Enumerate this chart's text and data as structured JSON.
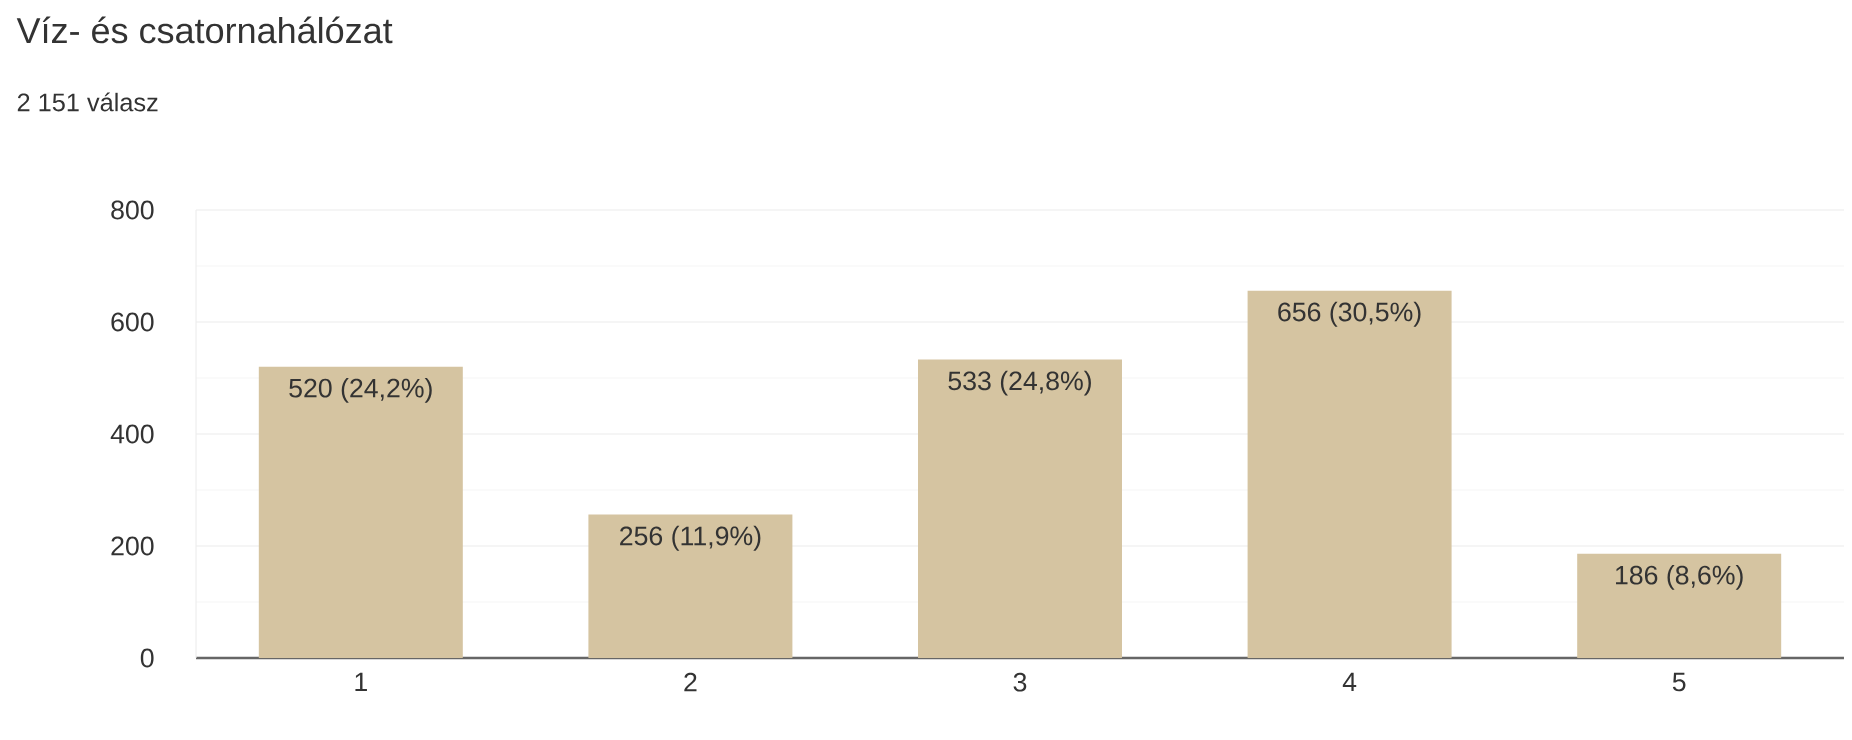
{
  "chart_data": {
    "type": "bar",
    "title": "Víz- és csatornahálózat",
    "subtitle": "2 151 válasz",
    "categories": [
      "1",
      "2",
      "3",
      "4",
      "5"
    ],
    "values": [
      520,
      256,
      533,
      656,
      186
    ],
    "value_labels": [
      "520 (24,2%)",
      "256 (11,9%)",
      "533 (24,8%)",
      "656 (30,5%)",
      "186 (8,6%)"
    ],
    "color": "#d5c4a1",
    "ylim": [
      0,
      800
    ],
    "yticks": [
      0,
      200,
      400,
      600,
      800
    ],
    "grid": "y"
  }
}
